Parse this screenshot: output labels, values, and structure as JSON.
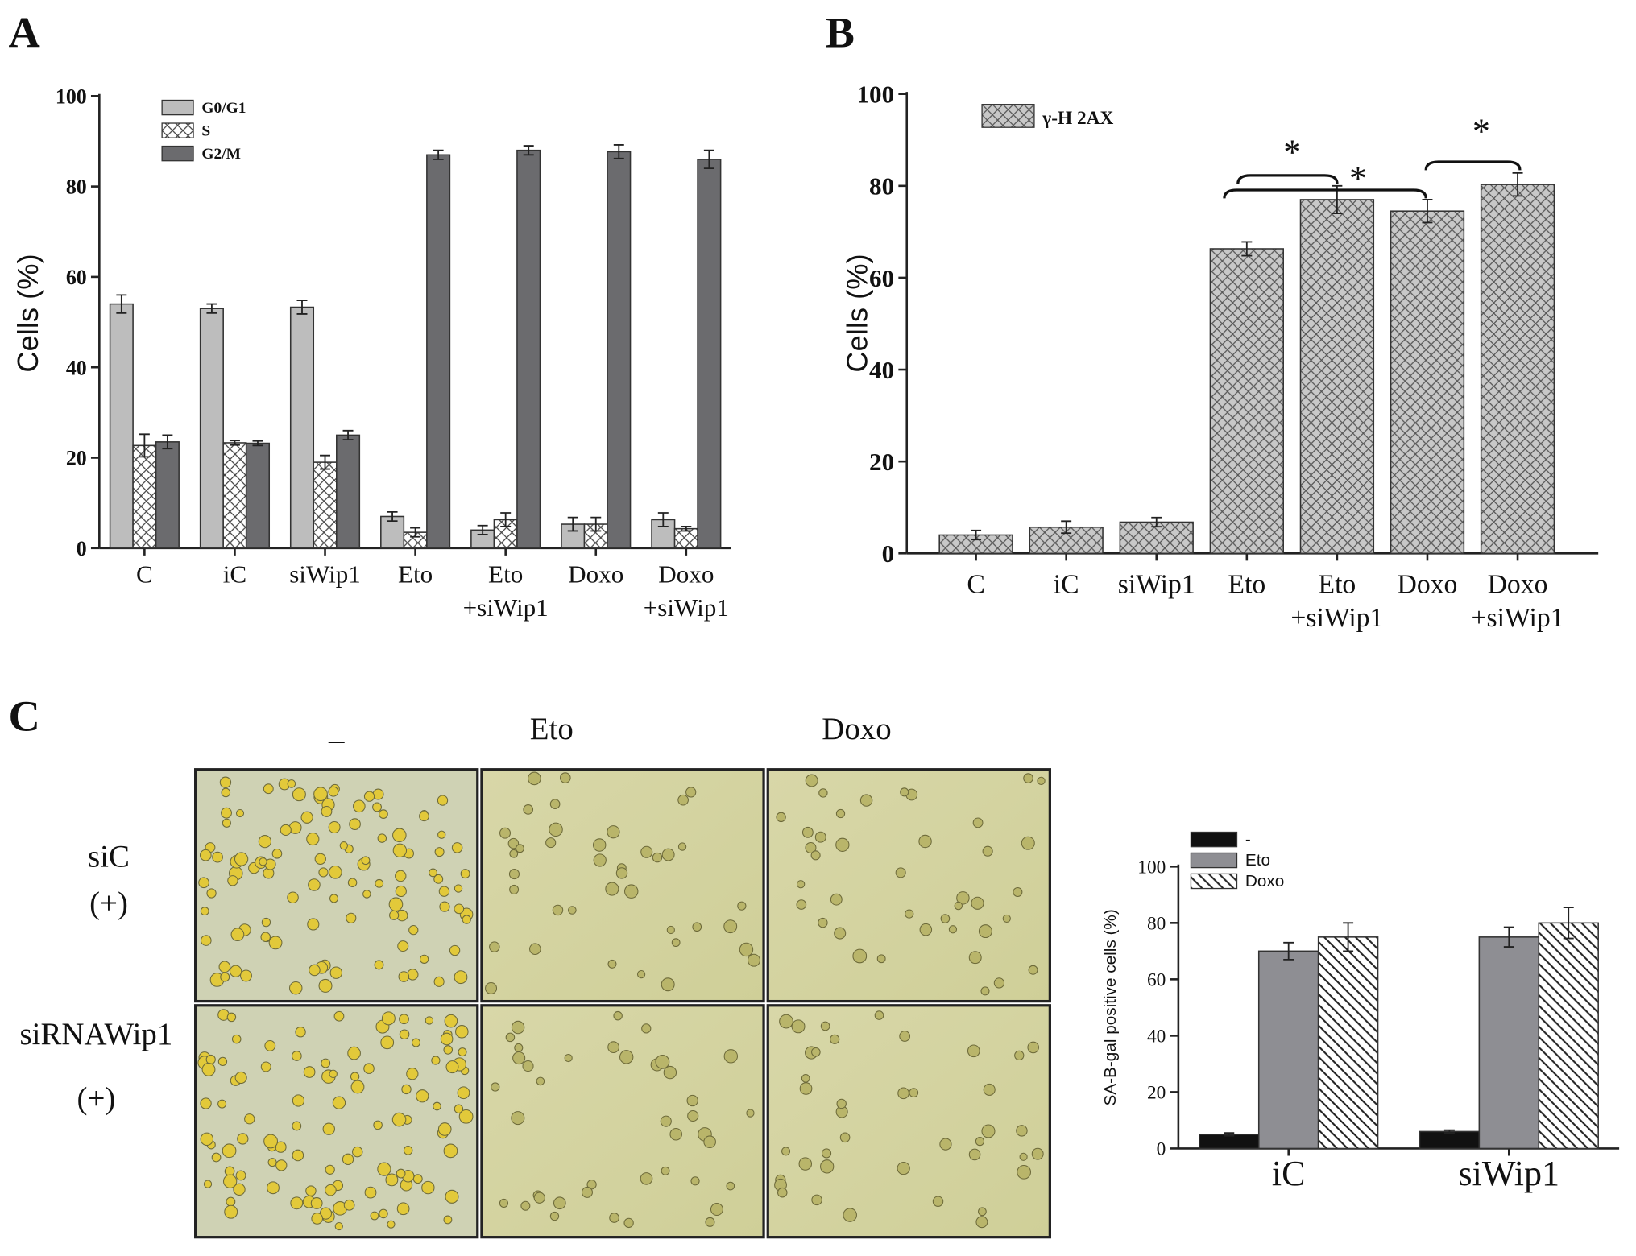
{
  "chart_data": [
    {
      "type": "bar",
      "panel": "A",
      "ylabel": "Cells (%)",
      "categories": [
        "C",
        "iC",
        "siWip1",
        "Eto",
        [
          "Eto",
          "+siWip1"
        ],
        "Doxo",
        [
          "Doxo",
          "+siWip1"
        ]
      ],
      "series": [
        {
          "name": "G0/G1",
          "color": "#bdbdbd",
          "hatch": "none",
          "values": [
            54,
            53,
            53.3,
            7,
            4,
            5.3,
            6.3
          ],
          "errors": [
            2,
            1,
            1.5,
            1,
            1,
            1.5,
            1.5
          ]
        },
        {
          "name": "S",
          "color": "#ffffff",
          "hatch": "cross",
          "values": [
            22.7,
            23.3,
            19,
            3.5,
            6.3,
            5.3,
            4.3
          ],
          "errors": [
            2.5,
            0.5,
            1.5,
            1,
            1.5,
            1.5,
            0.5
          ]
        },
        {
          "name": "G2/M",
          "color": "#6b6b6e",
          "hatch": "none",
          "values": [
            23.5,
            23.2,
            25,
            87,
            88,
            87.7,
            86
          ],
          "errors": [
            1.5,
            0.5,
            1,
            1,
            1,
            1.5,
            2
          ]
        }
      ],
      "ylim": [
        0,
        100
      ],
      "yticks": [
        0,
        20,
        40,
        60,
        80,
        100
      ],
      "legend": "upper left"
    },
    {
      "type": "bar",
      "panel": "B",
      "ylabel": "Cells (%)",
      "categories": [
        "C",
        "iC",
        "siWip1",
        "Eto",
        [
          "Eto",
          "+siWip1"
        ],
        "Doxo",
        [
          "Doxo",
          "+siWip1"
        ]
      ],
      "series": [
        {
          "name": "γ-H 2AX",
          "color": "#c8c8c8",
          "hatch": "cross",
          "values": [
            4,
            5.7,
            6.8,
            66.3,
            77,
            74.5,
            80.3
          ],
          "errors": [
            1,
            1.3,
            1,
            1.5,
            3,
            2.5,
            2.5
          ]
        }
      ],
      "annotations": [
        "*",
        "*",
        "*"
      ],
      "ylim": [
        0,
        100
      ],
      "yticks": [
        0,
        20,
        40,
        60,
        80,
        100
      ],
      "legend": "upper left"
    },
    {
      "type": "bar",
      "ylabel": "SA-B-gal positive cells  (%)",
      "categories": [
        "iC",
        "siWip1"
      ],
      "series": [
        {
          "name": "-",
          "color": "#111111",
          "hatch": "none",
          "values": [
            5,
            6
          ],
          "errors": [
            0.5,
            0.5
          ]
        },
        {
          "name": "Eto",
          "color": "#8e8e93",
          "hatch": "none",
          "values": [
            70,
            75
          ],
          "errors": [
            3,
            3.5
          ]
        },
        {
          "name": "Doxo",
          "color": "#ffffff",
          "hatch": "diag",
          "values": [
            75,
            80
          ],
          "errors": [
            5,
            5.5
          ]
        }
      ],
      "ylim": [
        0,
        100
      ],
      "yticks": [
        0,
        20,
        40,
        60,
        80,
        100
      ],
      "legend": "upper left"
    }
  ],
  "micrographs": {
    "panel": "C",
    "columns": [
      "_",
      "Eto",
      "Doxo"
    ],
    "rows": [
      {
        "label": "siC",
        "sub": "(+)"
      },
      {
        "label": "siRNAWip1",
        "sub": "(+)"
      }
    ]
  }
}
